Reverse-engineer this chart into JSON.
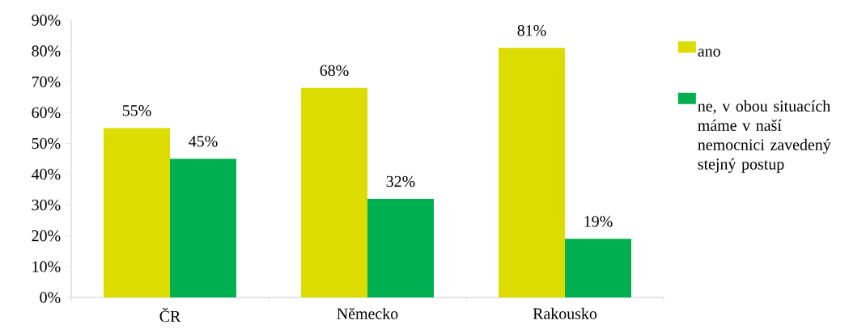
{
  "chart_data": {
    "type": "bar",
    "categories": [
      "ČR",
      "Německo",
      "Rakousko"
    ],
    "series": [
      {
        "name": "ano",
        "color": "#dcdc00",
        "values": [
          55,
          68,
          81
        ],
        "value_labels": [
          "55%",
          "68%",
          "81%"
        ]
      },
      {
        "name": "ne, v obou situacích máme v naší nemocnici zavedený stejný postup",
        "color": "#00b050",
        "values": [
          45,
          32,
          19
        ],
        "value_labels": [
          "45%",
          "32%",
          "19%"
        ]
      }
    ],
    "ylim": [
      0,
      90
    ],
    "yticks": [
      {
        "value": 0,
        "label": "0%"
      },
      {
        "value": 10,
        "label": "10%"
      },
      {
        "value": 20,
        "label": "20%"
      },
      {
        "value": 30,
        "label": "30%"
      },
      {
        "value": 40,
        "label": "40%"
      },
      {
        "value": 50,
        "label": "50%"
      },
      {
        "value": 60,
        "label": "60%"
      },
      {
        "value": 70,
        "label": "70%"
      },
      {
        "value": 80,
        "label": "80%"
      },
      {
        "value": 90,
        "label": "90%"
      }
    ],
    "grid": false,
    "legend": "right"
  }
}
